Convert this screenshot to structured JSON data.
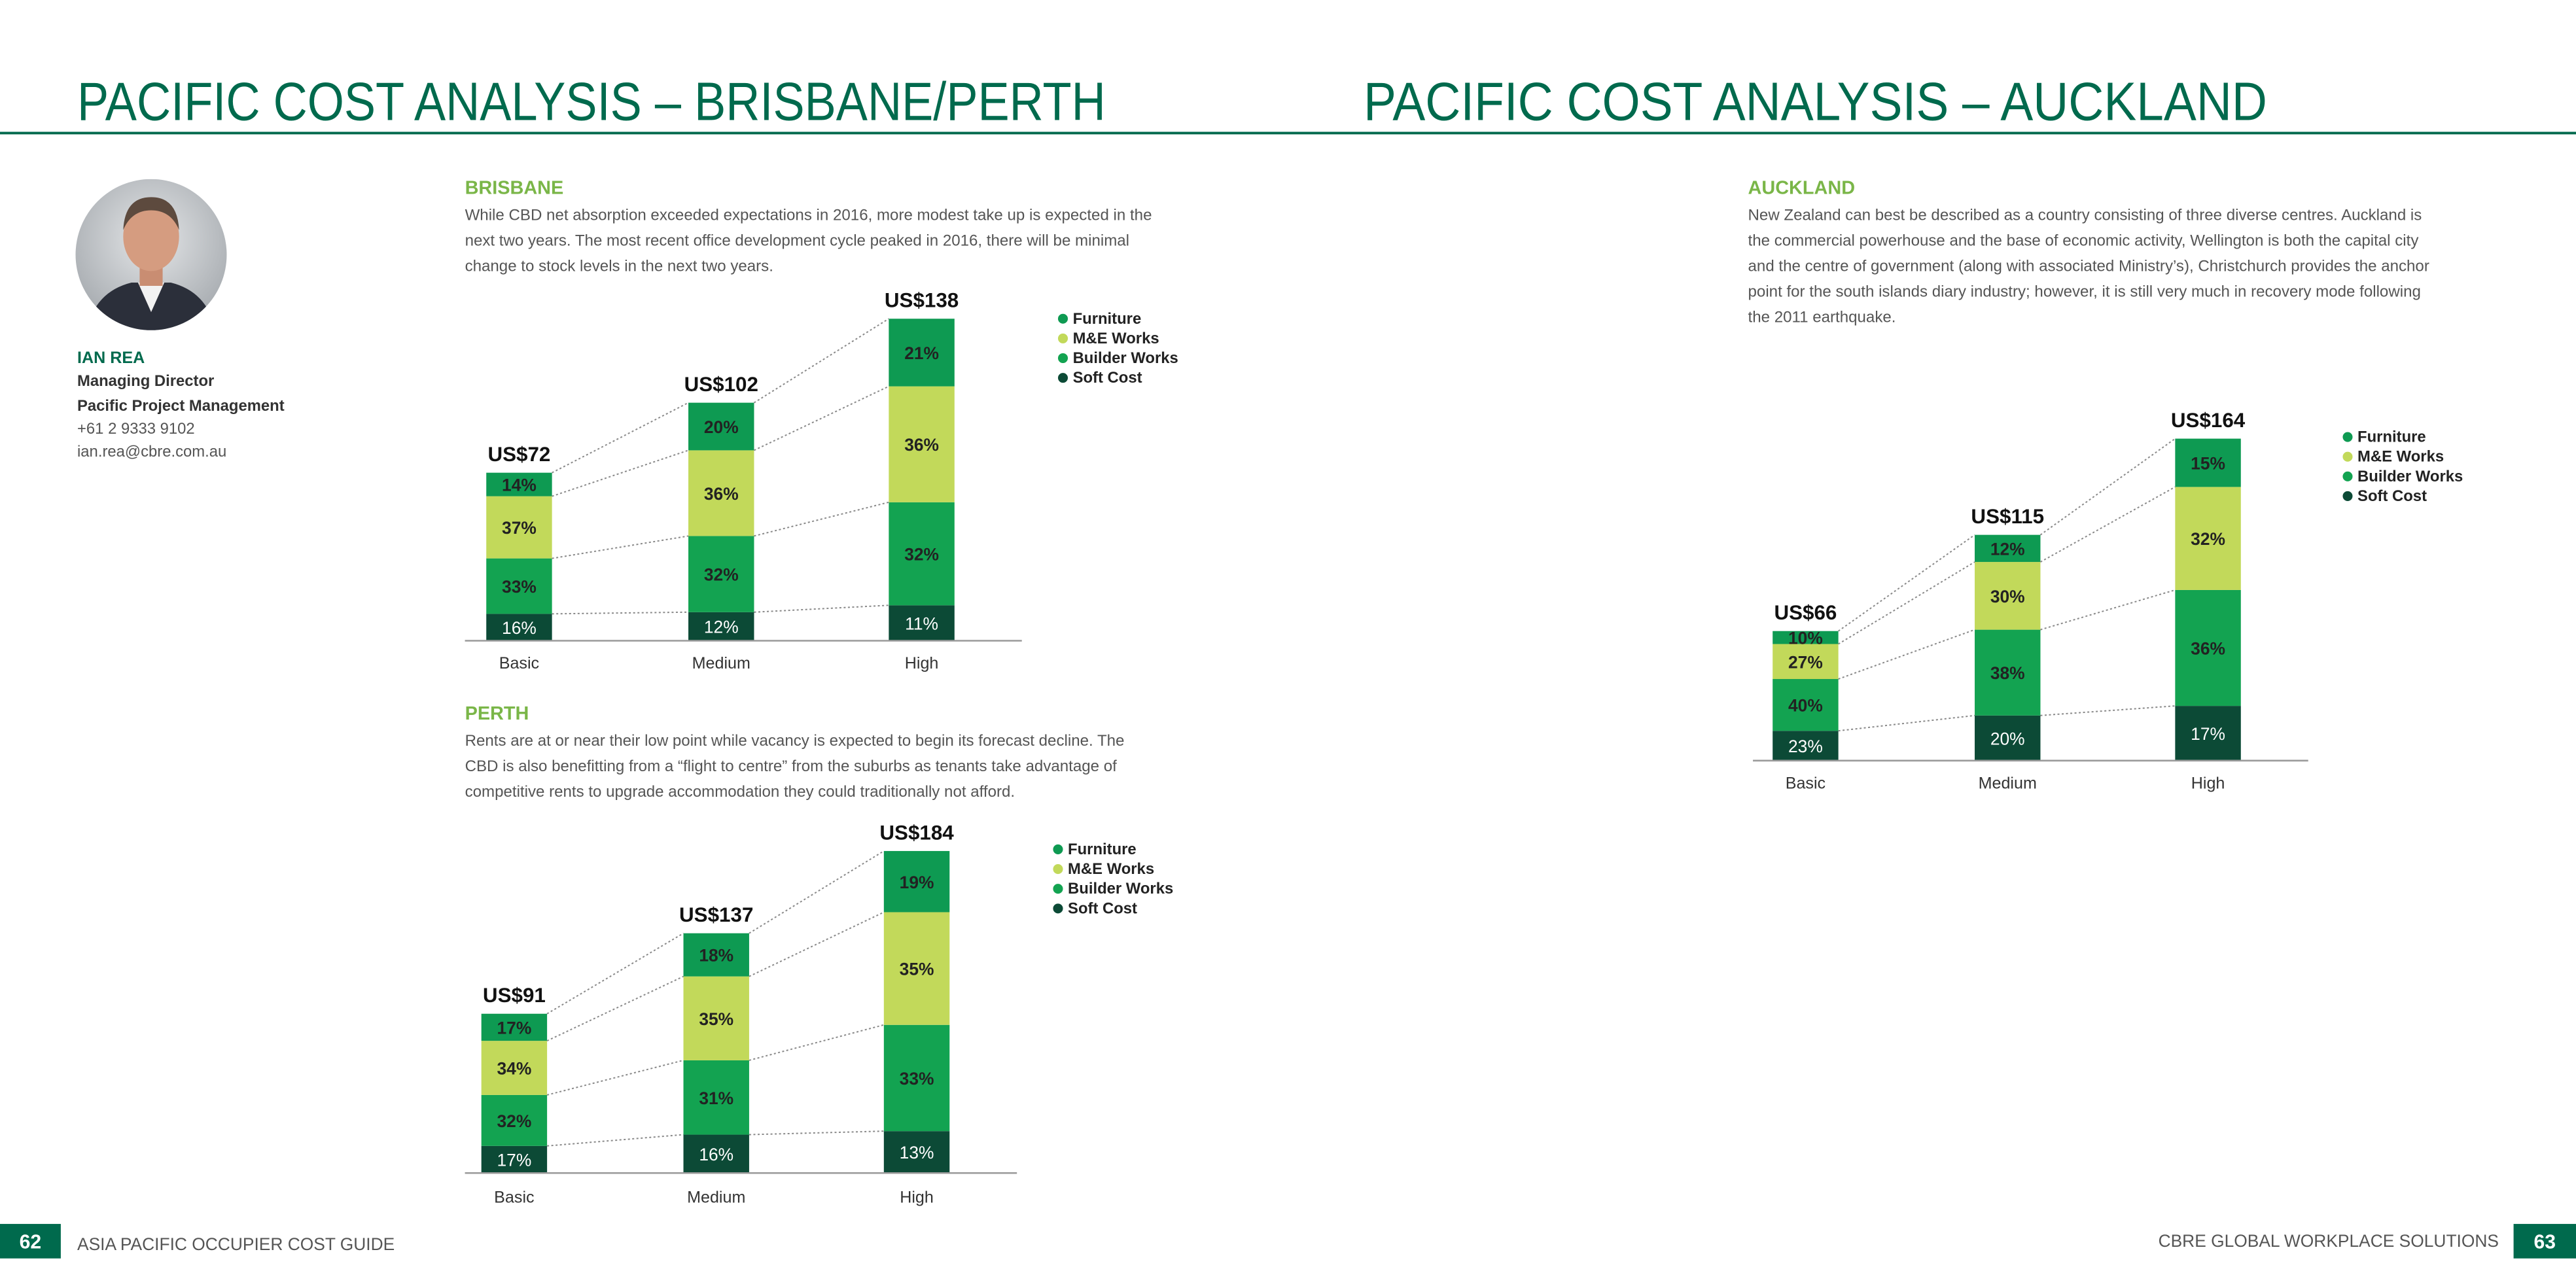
{
  "header": {
    "left_title": "PACIFIC COST ANALYSIS – BRISBANE/PERTH",
    "right_title": "PACIFIC COST ANALYSIS – AUCKLAND"
  },
  "profile": {
    "name": "IAN REA",
    "role": "Managing Director",
    "company": "Pacific Project Management",
    "phone": "+61 2 9333 9102",
    "email": "ian.rea@cbre.com.au"
  },
  "sections": [
    {
      "heading": "BRISBANE",
      "paragraph": [
        "While CBD net absorption exceeded expectations in 2016, more modest take up is expected in the",
        "next two years. The most recent office development cycle peaked in 2016, there will be minimal",
        "change to stock levels in the next two years."
      ]
    },
    {
      "heading": "PERTH",
      "paragraph": [
        "Rents are at or near their low point while vacancy is expected to begin its forecast decline. The",
        "CBD is also benefitting from a “flight to centre” from the suburbs as tenants take advantage of",
        "competitive rents to upgrade accommodation they could traditionally not afford."
      ]
    },
    {
      "heading": "AUCKLAND",
      "paragraph": [
        "New Zealand can best be described as a country consisting of three diverse centres. Auckland is",
        "the commercial powerhouse and the base of economic activity, Wellington is both the capital city",
        "and the centre of government (along with associated Ministry’s), Christchurch provides the anchor",
        "point for the south islands diary industry; however, it is still very much in recovery mode following",
        "the 2011 earthquake."
      ]
    }
  ],
  "chart_data": [
    {
      "type": "stacked_bar",
      "categories": [
        "Basic",
        "Medium",
        "High"
      ],
      "totals": {
        "values": [
          72,
          102,
          138
        ],
        "value_labels": [
          "US$72",
          "US$102",
          "US$138"
        ]
      },
      "series": [
        {
          "name": "Furniture",
          "color": "#0e9a52",
          "values": [
            14,
            20,
            21
          ],
          "value_labels": [
            "14%",
            "20%",
            "21%"
          ]
        },
        {
          "name": "M&E Works",
          "color": "#c2d95a",
          "values": [
            37,
            36,
            36
          ],
          "value_labels": [
            "37%",
            "36%",
            "36%"
          ]
        },
        {
          "name": "Builder Works",
          "color": "#13a351",
          "values": [
            33,
            32,
            32
          ],
          "value_labels": [
            "33%",
            "32%",
            "32%"
          ]
        },
        {
          "name": "Soft Cost",
          "color": "#0c4a36",
          "values": [
            16,
            12,
            11
          ],
          "value_labels": [
            "16%",
            "12%",
            "11%"
          ]
        }
      ]
    },
    {
      "type": "stacked_bar",
      "categories": [
        "Basic",
        "Medium",
        "High"
      ],
      "totals": {
        "values": [
          91,
          137,
          184
        ],
        "value_labels": [
          "US$91",
          "US$137",
          "US$184"
        ]
      },
      "series": [
        {
          "name": "Furniture",
          "color": "#0e9a52",
          "values": [
            17,
            18,
            19
          ],
          "value_labels": [
            "17%",
            "18%",
            "19%"
          ]
        },
        {
          "name": "M&E Works",
          "color": "#c2d95a",
          "values": [
            34,
            35,
            35
          ],
          "value_labels": [
            "34%",
            "35%",
            "35%"
          ]
        },
        {
          "name": "Builder Works",
          "color": "#13a351",
          "values": [
            32,
            31,
            33
          ],
          "value_labels": [
            "32%",
            "31%",
            "33%"
          ]
        },
        {
          "name": "Soft Cost",
          "color": "#0c4a36",
          "values": [
            17,
            16,
            13
          ],
          "value_labels": [
            "17%",
            "16%",
            "13%"
          ]
        }
      ]
    },
    {
      "type": "stacked_bar",
      "categories": [
        "Basic",
        "Medium",
        "High"
      ],
      "totals": {
        "values": [
          66,
          115,
          164
        ],
        "value_labels": [
          "US$66",
          "US$115",
          "US$164"
        ]
      },
      "series": [
        {
          "name": "Furniture",
          "color": "#0e9a52",
          "values": [
            10,
            12,
            15
          ],
          "value_labels": [
            "10%",
            "12%",
            "15%"
          ]
        },
        {
          "name": "M&E Works",
          "color": "#c2d95a",
          "values": [
            27,
            30,
            32
          ],
          "value_labels": [
            "27%",
            "30%",
            "32%"
          ]
        },
        {
          "name": "Builder Works",
          "color": "#13a351",
          "values": [
            40,
            38,
            36
          ],
          "value_labels": [
            "40%",
            "38%",
            "36%"
          ]
        },
        {
          "name": "Soft Cost",
          "color": "#0c4a36",
          "values": [
            23,
            20,
            17
          ],
          "value_labels": [
            "23%",
            "20%",
            "17%"
          ]
        }
      ]
    }
  ],
  "footer": {
    "left_page": 62,
    "left_text": "ASIA PACIFIC OCCUPIER COST GUIDE",
    "right_text": "CBRE GLOBAL WORKPLACE SOLUTIONS",
    "right_page": 63
  }
}
